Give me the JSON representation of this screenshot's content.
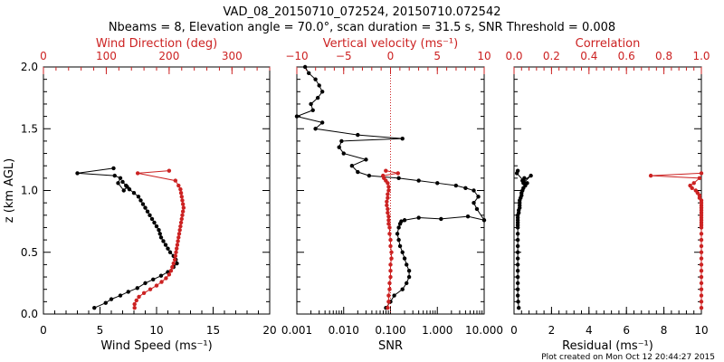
{
  "header": {
    "title": "VAD_08_20150710_072524, 20150710.072542",
    "subtitle": "Nbeams = 8, Elevation angle = 70.0°, scan duration = 31.5 s, SNR Threshold = 0.008"
  },
  "footer": {
    "created": "Plot created on Mon Oct 12 20:44:27 2015"
  },
  "colors": {
    "primary": "#000000",
    "secondary": "#cc2222"
  },
  "chart_data": [
    {
      "type": "line",
      "id": "wind",
      "ylabel": "z (km AGL)",
      "ylim": [
        0,
        2
      ],
      "yticks": [
        "0.0",
        "0.5",
        "1.0",
        "1.5",
        "2.0"
      ],
      "bottom_axis": {
        "label": "Wind Speed (ms⁻¹)",
        "lim": [
          0,
          20
        ],
        "ticks": [
          "0",
          "5",
          "10",
          "15",
          "20"
        ]
      },
      "top_axis": {
        "label": "Wind Direction (deg)",
        "lim": [
          0,
          360
        ],
        "ticks": [
          "0",
          "100",
          "200",
          "300"
        ]
      },
      "series": [
        {
          "axis": "bottom",
          "color": "#000000",
          "x": [
            4.5,
            5.5,
            6.0,
            6.8,
            7.5,
            8.3,
            9.0,
            9.7,
            10.4,
            11.0,
            11.5,
            11.8,
            11.7,
            11.5,
            11.2,
            11.0,
            10.8,
            10.6,
            10.4,
            10.3,
            10.2,
            10.0,
            9.8,
            9.6,
            9.4,
            9.2,
            9.0,
            8.8,
            8.6,
            8.4,
            8.0,
            7.6,
            7.3,
            7.0,
            7.4,
            7.1,
            6.6,
            6.8,
            6.3,
            3.0,
            6.2
          ],
          "y": [
            0.05,
            0.09,
            0.12,
            0.15,
            0.18,
            0.21,
            0.25,
            0.28,
            0.31,
            0.34,
            0.38,
            0.41,
            0.44,
            0.47,
            0.5,
            0.53,
            0.56,
            0.59,
            0.62,
            0.65,
            0.68,
            0.71,
            0.74,
            0.77,
            0.8,
            0.83,
            0.86,
            0.89,
            0.92,
            0.95,
            0.98,
            1.01,
            1.04,
            1.07,
            1.03,
            1.0,
            1.06,
            1.1,
            1.12,
            1.14,
            1.18
          ]
        },
        {
          "axis": "top",
          "color": "#cc2222",
          "x": [
            145,
            145,
            148,
            152,
            160,
            170,
            180,
            188,
            195,
            200,
            203,
            205,
            207,
            209,
            210,
            211,
            212,
            213,
            214,
            215,
            216,
            217,
            218,
            219,
            220,
            221,
            222,
            223,
            222,
            221,
            220,
            219,
            218,
            215,
            210,
            150,
            200
          ],
          "y": [
            0.05,
            0.08,
            0.11,
            0.14,
            0.17,
            0.2,
            0.23,
            0.26,
            0.29,
            0.32,
            0.35,
            0.38,
            0.41,
            0.44,
            0.47,
            0.5,
            0.53,
            0.56,
            0.59,
            0.62,
            0.65,
            0.68,
            0.71,
            0.74,
            0.77,
            0.8,
            0.83,
            0.86,
            0.89,
            0.92,
            0.95,
            0.98,
            1.01,
            1.04,
            1.08,
            1.14,
            1.16
          ]
        }
      ]
    },
    {
      "type": "line",
      "id": "snr",
      "ylim": [
        0,
        2
      ],
      "bottom_axis": {
        "label": "SNR",
        "lim": [
          0.001,
          10
        ],
        "log": true,
        "ticks": [
          "0.001",
          "0.010",
          "0.100",
          "1.000",
          "10.000"
        ]
      },
      "top_axis": {
        "label": "Vertical velocity (ms⁻¹)",
        "lim": [
          -10,
          10
        ],
        "ticks": [
          "−10",
          "−5",
          "0",
          "5",
          "10"
        ]
      },
      "reference_line": {
        "axis": "top",
        "x": 0,
        "style": "dotted"
      },
      "series": [
        {
          "axis": "bottom",
          "color": "#000000",
          "x": [
            0.08,
            0.1,
            0.12,
            0.18,
            0.22,
            0.25,
            0.25,
            0.22,
            0.2,
            0.18,
            0.16,
            0.15,
            0.14,
            0.15,
            0.16,
            0.17,
            0.2,
            0.4,
            1.2,
            4.5,
            10,
            7,
            6,
            7.5,
            6,
            4,
            2.5,
            1,
            0.4,
            0.15,
            0.035,
            0.02,
            0.015,
            0.03,
            0.01,
            0.008,
            0.009,
            0.18,
            0.02,
            0.0025,
            0.0035,
            0.001,
            0.0022,
            0.002,
            0.0028,
            0.0035,
            0.003,
            0.0025,
            0.0018,
            0.0015
          ],
          "y": [
            0.05,
            0.1,
            0.15,
            0.2,
            0.25,
            0.3,
            0.35,
            0.4,
            0.45,
            0.5,
            0.55,
            0.6,
            0.65,
            0.7,
            0.73,
            0.75,
            0.76,
            0.78,
            0.77,
            0.79,
            0.76,
            0.85,
            0.9,
            0.95,
            1.0,
            1.02,
            1.04,
            1.06,
            1.08,
            1.1,
            1.12,
            1.15,
            1.2,
            1.25,
            1.3,
            1.35,
            1.4,
            1.42,
            1.45,
            1.5,
            1.55,
            1.6,
            1.65,
            1.7,
            1.75,
            1.8,
            1.85,
            1.9,
            1.95,
            2.0
          ]
        },
        {
          "axis": "top",
          "color": "#cc2222",
          "x": [
            -0.3,
            -0.2,
            -0.2,
            -0.1,
            -0.1,
            0,
            0,
            0,
            0.1,
            0.1,
            0,
            0,
            -0.1,
            -0.1,
            -0.2,
            -0.2,
            -0.2,
            -0.3,
            -0.3,
            -0.4,
            -0.4,
            -0.3,
            -0.3,
            -0.2,
            -0.2,
            -0.3,
            -0.5,
            -0.7,
            -0.8,
            0.8,
            -0.5
          ],
          "y": [
            0.05,
            0.1,
            0.15,
            0.2,
            0.25,
            0.3,
            0.35,
            0.4,
            0.45,
            0.5,
            0.55,
            0.6,
            0.65,
            0.7,
            0.73,
            0.76,
            0.79,
            0.82,
            0.85,
            0.88,
            0.91,
            0.94,
            0.97,
            1.0,
            1.03,
            1.06,
            1.08,
            1.1,
            1.12,
            1.14,
            1.16
          ]
        }
      ]
    },
    {
      "type": "line",
      "id": "residual",
      "ylim": [
        0,
        2
      ],
      "bottom_axis": {
        "label": "Residual (ms⁻¹)",
        "lim": [
          0,
          10
        ],
        "ticks": [
          "0",
          "2",
          "4",
          "6",
          "8",
          "10"
        ]
      },
      "top_axis": {
        "label": "Correlation",
        "lim": [
          0,
          1
        ],
        "ticks": [
          "0.0",
          "0.2",
          "0.4",
          "0.6",
          "0.8",
          "1.0"
        ]
      },
      "series": [
        {
          "axis": "bottom",
          "color": "#000000",
          "x": [
            0.25,
            0.22,
            0.2,
            0.2,
            0.2,
            0.2,
            0.2,
            0.2,
            0.2,
            0.2,
            0.2,
            0.2,
            0.2,
            0.2,
            0.2,
            0.2,
            0.2,
            0.2,
            0.2,
            0.25,
            0.25,
            0.3,
            0.3,
            0.3,
            0.3,
            0.35,
            0.4,
            0.4,
            0.45,
            0.5,
            0.6,
            0.7,
            0.45,
            0.55,
            0.5,
            0.9,
            0.5,
            0.15,
            0.2
          ],
          "y": [
            0.05,
            0.1,
            0.15,
            0.2,
            0.25,
            0.3,
            0.35,
            0.4,
            0.45,
            0.5,
            0.55,
            0.6,
            0.65,
            0.7,
            0.72,
            0.74,
            0.76,
            0.78,
            0.8,
            0.82,
            0.84,
            0.86,
            0.88,
            0.9,
            0.92,
            0.94,
            0.96,
            0.98,
            1.0,
            1.02,
            1.04,
            1.06,
            1.08,
            1.1,
            1.06,
            1.12,
            1.08,
            1.14,
            1.16
          ]
        },
        {
          "axis": "top",
          "color": "#cc2222",
          "x": [
            1.0,
            1.0,
            1.0,
            1.0,
            1.0,
            1.0,
            1.0,
            1.0,
            1.0,
            1.0,
            1.0,
            1.0,
            1.0,
            1.0,
            1.0,
            1.0,
            1.0,
            1.0,
            1.0,
            1.0,
            1.0,
            1.0,
            1.0,
            1.0,
            1.0,
            0.99,
            0.99,
            0.98,
            0.97,
            0.95,
            0.94,
            0.96,
            0.99,
            0.73,
            1.0
          ],
          "y": [
            0.05,
            0.1,
            0.15,
            0.2,
            0.25,
            0.3,
            0.35,
            0.4,
            0.45,
            0.5,
            0.55,
            0.6,
            0.65,
            0.7,
            0.72,
            0.74,
            0.76,
            0.78,
            0.8,
            0.82,
            0.84,
            0.86,
            0.88,
            0.9,
            0.92,
            0.94,
            0.96,
            0.98,
            1.0,
            1.02,
            1.04,
            1.06,
            1.1,
            1.12,
            1.14
          ]
        }
      ]
    }
  ]
}
